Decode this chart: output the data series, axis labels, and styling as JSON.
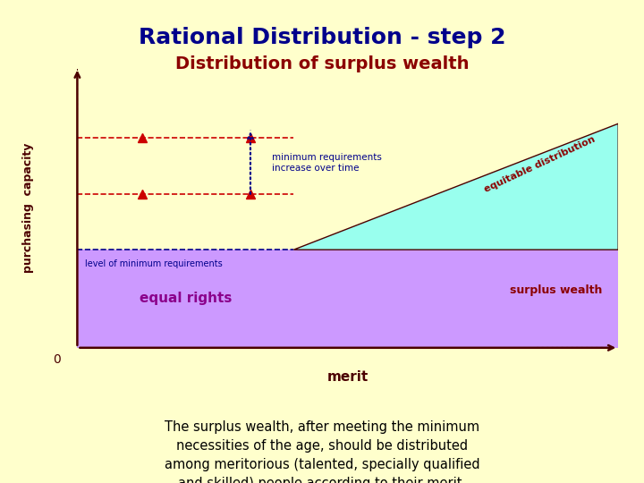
{
  "title": "Rational Distribution - step 2",
  "subtitle": "Distribution of surplus wealth",
  "title_color": "#00008B",
  "subtitle_color": "#8B0000",
  "bg_color": "#FFFFCC",
  "xlabel": "merit",
  "ylabel": "purchasing  capacity",
  "xlabel_color": "#4B0000",
  "ylabel_color": "#4B0000",
  "equal_rights_color": "#CC99FF",
  "equal_rights_label": "equal rights",
  "surplus_wealth_color": "#99FFEE",
  "surplus_wealth_label": "surplus wealth",
  "equitable_label": "equitable distribution",
  "equitable_color": "#8B0000",
  "surplus_label_color": "#8B0000",
  "min_req_label": "minimum requirements\nincrease over time",
  "min_req_label_color": "#00008B",
  "level_label": "level of minimum requirements",
  "level_label_color": "#00008B",
  "axis_color": "#4B0000",
  "dashed_color": "#CC0000",
  "blue_dash_color": "#00008B",
  "triangle_color": "#CC0000",
  "footer_text": "The surplus wealth, after meeting the minimum\nnecessities of the age, should be distributed\namong meritorious (talented, specially qualified\nand skilled) people according to their merit.",
  "footer_color": "#000000"
}
